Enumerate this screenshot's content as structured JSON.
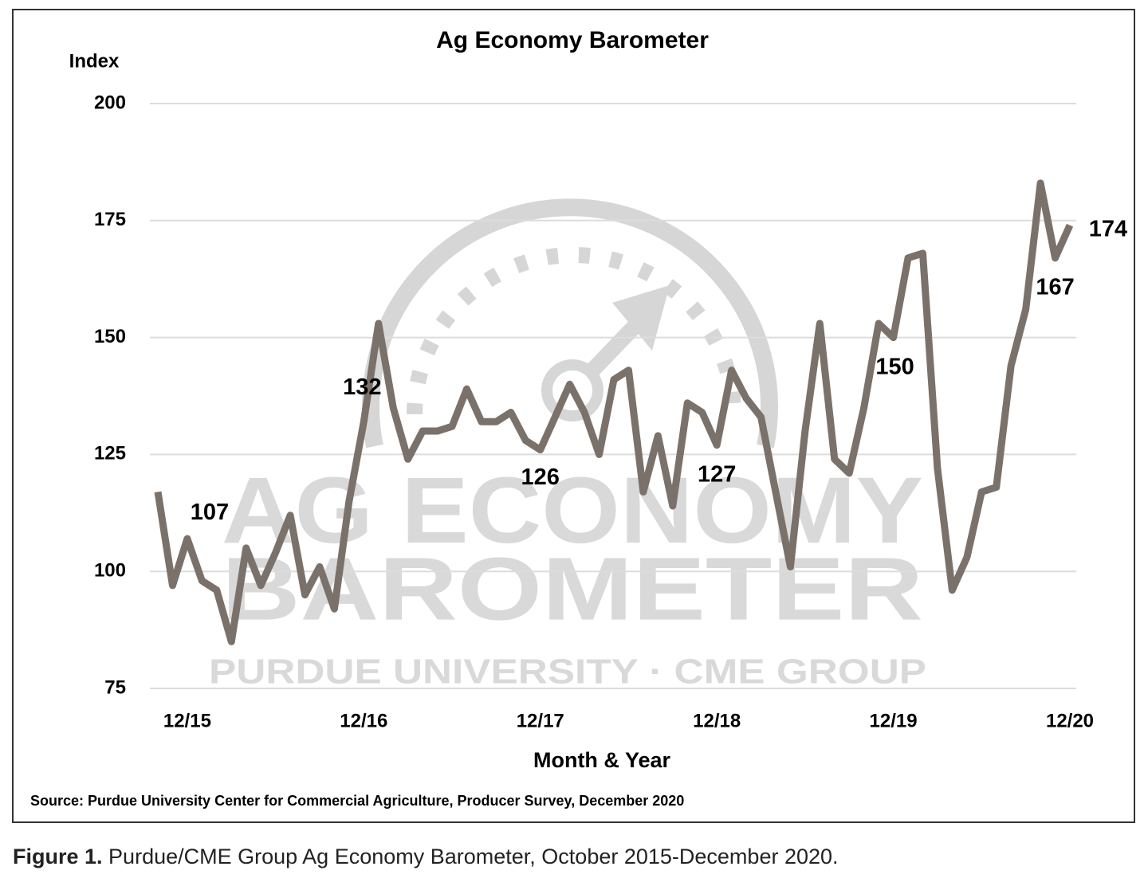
{
  "chart_data": {
    "type": "line",
    "title": "Ag Economy Barometer",
    "y_axis_label": "Index",
    "x_axis_label": "Month & Year",
    "source": "Source: Purdue University Center for Commercial Agriculture, Producer Survey, December 2020",
    "watermark": [
      "AG ECONOMY",
      "BAROMETER",
      "PURDUE UNIVERSITY · CME GROUP"
    ],
    "categories": [
      null,
      null,
      "12/15",
      null,
      null,
      null,
      null,
      null,
      null,
      null,
      null,
      null,
      null,
      null,
      "12/16",
      null,
      null,
      null,
      null,
      null,
      null,
      null,
      null,
      null,
      null,
      null,
      "12/17",
      null,
      null,
      null,
      null,
      null,
      null,
      null,
      null,
      null,
      null,
      null,
      "12/18",
      null,
      null,
      null,
      null,
      null,
      null,
      null,
      null,
      null,
      null,
      null,
      "12/19",
      null,
      null,
      null,
      null,
      null,
      null,
      null,
      null,
      null,
      null,
      null,
      "12/20"
    ],
    "series": [
      {
        "name": "Ag Economy Barometer",
        "color": "#7b716b",
        "values": [
          117,
          97,
          107,
          98,
          96,
          85,
          105,
          97,
          104,
          112,
          95,
          101,
          92,
          115,
          132,
          153,
          135,
          124,
          130,
          130,
          131,
          139,
          132,
          132,
          134,
          128,
          126,
          133,
          140,
          134,
          125,
          141,
          143,
          117,
          129,
          114,
          136,
          134,
          127,
          143,
          137,
          133,
          117,
          101,
          130,
          153,
          124,
          121,
          135,
          153,
          150,
          167,
          168,
          122,
          96,
          103,
          117,
          118,
          144,
          156,
          183,
          167,
          174
        ],
        "value_labels": [
          null,
          null,
          "107",
          null,
          null,
          null,
          null,
          null,
          null,
          null,
          null,
          null,
          null,
          null,
          "132",
          null,
          null,
          null,
          null,
          null,
          null,
          null,
          null,
          null,
          null,
          null,
          "126",
          null,
          null,
          null,
          null,
          null,
          null,
          null,
          null,
          null,
          null,
          null,
          "127",
          null,
          null,
          null,
          null,
          null,
          null,
          null,
          null,
          null,
          null,
          null,
          "150",
          null,
          null,
          null,
          null,
          null,
          null,
          null,
          null,
          null,
          null,
          "167",
          "174"
        ]
      }
    ],
    "ylim": [
      75,
      200
    ],
    "yticks": [
      75,
      100,
      125,
      150,
      175,
      200
    ],
    "grid": true
  },
  "caption": {
    "label": "Figure 1.",
    "text": "Purdue/CME Group Ag Economy Barometer, October 2015-December 2020."
  }
}
